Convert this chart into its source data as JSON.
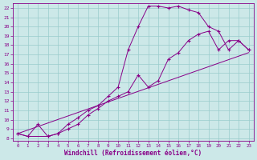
{
  "xlabel": "Windchill (Refroidissement éolien,°C)",
  "bg_color": "#cce8e8",
  "line_color": "#880088",
  "grid_color": "#99cccc",
  "line1_x": [
    0,
    1,
    3,
    4,
    5,
    6,
    7,
    8,
    9,
    10,
    11,
    12,
    13,
    14,
    15,
    16,
    17,
    18,
    19,
    20,
    21,
    22,
    23
  ],
  "line1_y": [
    8.5,
    8.2,
    8.2,
    8.5,
    9.5,
    10.2,
    11.0,
    11.5,
    12.5,
    13.5,
    17.5,
    20.0,
    22.2,
    22.2,
    22.0,
    22.2,
    21.8,
    21.5,
    20.0,
    19.5,
    17.5,
    18.5,
    17.5
  ],
  "line2_x": [
    0,
    1,
    2,
    3,
    4,
    5,
    6,
    7,
    8,
    9,
    10,
    11,
    12,
    13,
    14,
    15,
    16,
    17,
    18,
    19,
    20,
    21,
    22,
    23
  ],
  "line2_y": [
    8.5,
    8.2,
    9.5,
    8.2,
    8.5,
    9.0,
    9.5,
    10.5,
    11.2,
    12.0,
    12.5,
    13.0,
    14.8,
    13.5,
    14.2,
    16.5,
    17.2,
    18.5,
    19.2,
    19.5,
    17.5,
    18.5,
    18.5,
    17.5
  ],
  "line3_x": [
    0,
    23
  ],
  "line3_y": [
    8.5,
    17.2
  ],
  "xlim_min": -0.5,
  "xlim_max": 23.5,
  "ylim_min": 7.7,
  "ylim_max": 22.5,
  "xticks": [
    0,
    1,
    2,
    3,
    4,
    5,
    6,
    7,
    8,
    9,
    10,
    11,
    12,
    13,
    14,
    15,
    16,
    17,
    18,
    19,
    20,
    21,
    22,
    23
  ],
  "yticks": [
    8,
    9,
    10,
    11,
    12,
    13,
    14,
    15,
    16,
    17,
    18,
    19,
    20,
    21,
    22
  ]
}
